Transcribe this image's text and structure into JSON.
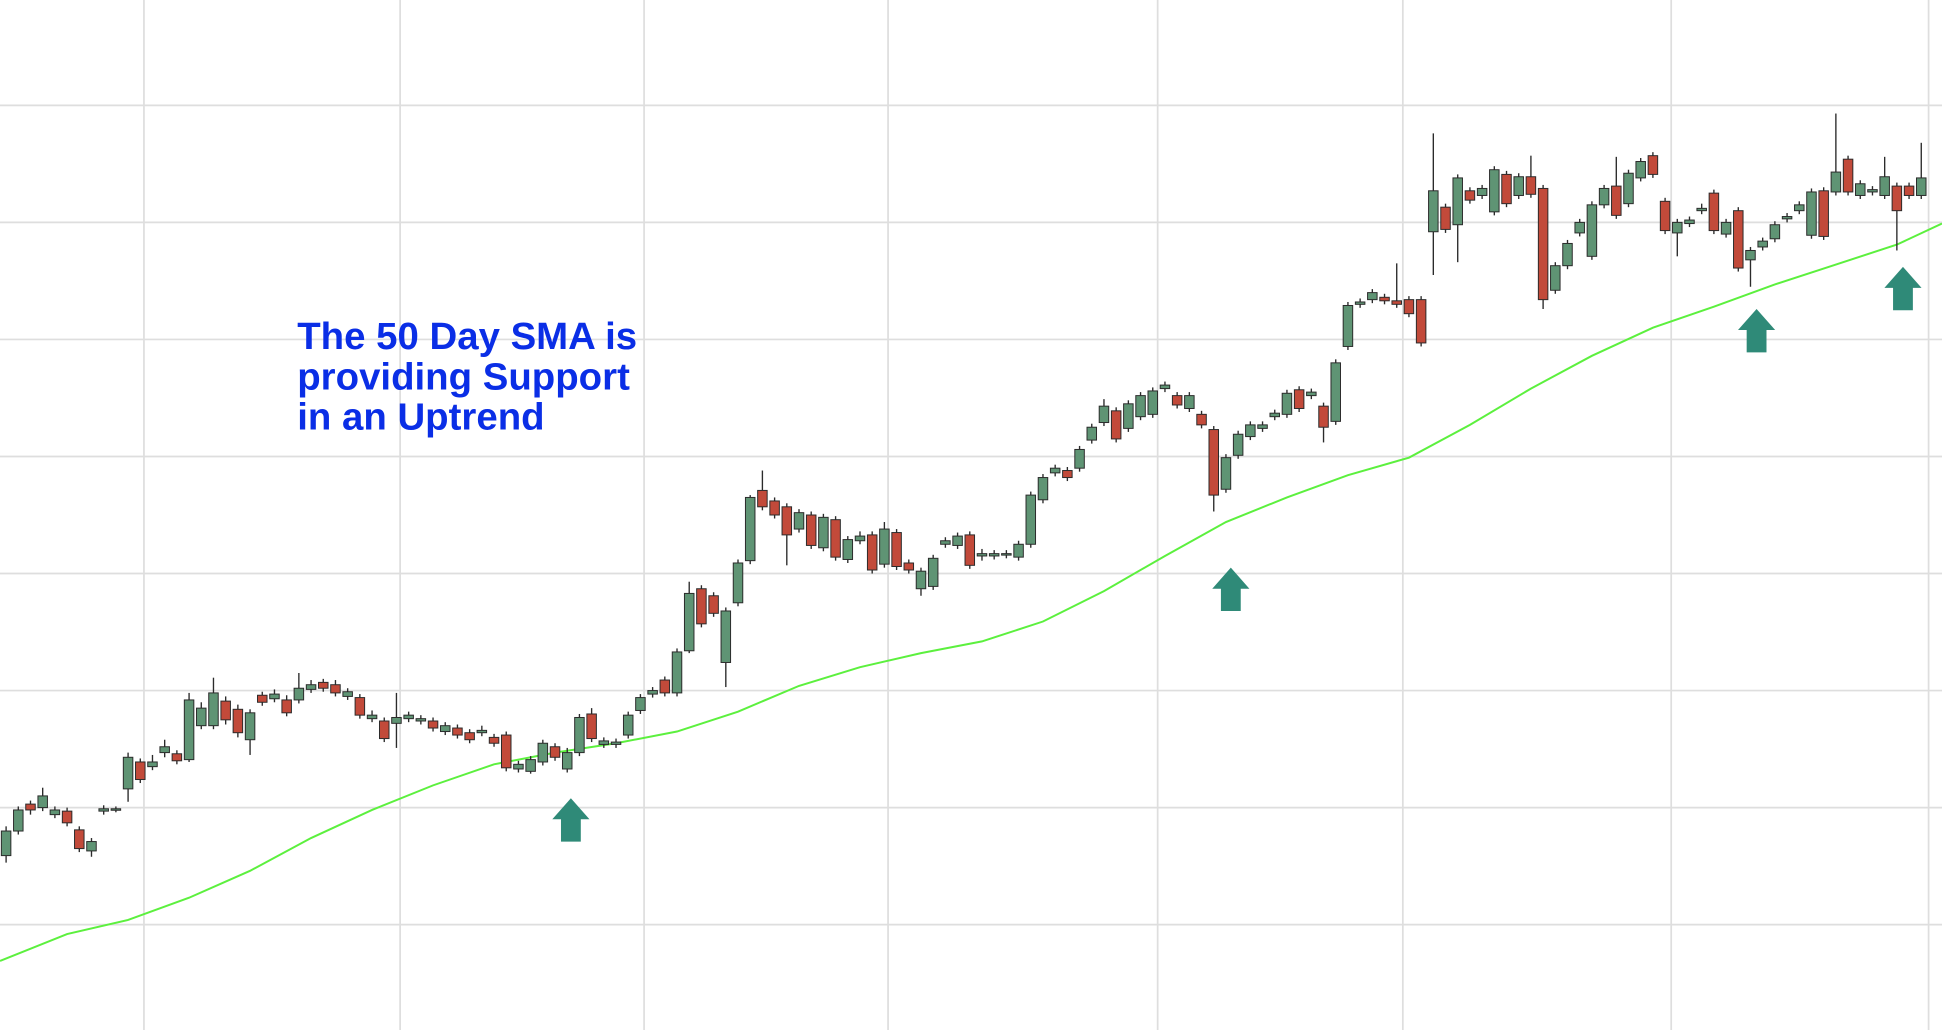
{
  "chart_data": {
    "type": "candlestick",
    "annotation": {
      "lines": [
        "The 50 Day SMA is",
        "providing Support",
        "in an Uptrend"
      ],
      "color": "#0a2ee6"
    },
    "up_color": "#5f9474",
    "down_color": "#c24a3a",
    "open": [
      15.9,
      18.0,
      20.3,
      20.0,
      19.4,
      19.7,
      18.1,
      16.3,
      19.7,
      19.8,
      21.6,
      23.9,
      23.5,
      24.7,
      24.6,
      24.1,
      27.0,
      27.0,
      29.1,
      28.4,
      25.8,
      29.6,
      29.3,
      29.2,
      29.2,
      30.1,
      30.7,
      30.5,
      29.5,
      29.4,
      27.6,
      27.4,
      27.2,
      27.6,
      27.4,
      27.4,
      26.5,
      26.8,
      26.4,
      26.4,
      26.0,
      26.2,
      23.3,
      23.1,
      23.9,
      25.2,
      23.3,
      24.7,
      28.0,
      25.4,
      25.4,
      26.2,
      28.3,
      29.7,
      30.9,
      29.8,
      33.4,
      38.7,
      38.1,
      32.4,
      37.5,
      41.1,
      47.1,
      46.2,
      45.7,
      43.8,
      45.0,
      42.2,
      44.6,
      41.2,
      42.8,
      43.3,
      40.8,
      43.5,
      40.9,
      38.7,
      38.9,
      42.5,
      42.4,
      43.3,
      41.5,
      41.5,
      41.6,
      41.4,
      42.5,
      46.3,
      48.6,
      48.8,
      49.0,
      51.4,
      52.9,
      53.9,
      52.4,
      53.4,
      53.6,
      55.8,
      55.2,
      54.1,
      53.6,
      52.3,
      47.2,
      50.1,
      51.7,
      52.4,
      53.4,
      53.6,
      55.7,
      55.2,
      54.3,
      53.0,
      59.4,
      63.0,
      63.4,
      63.6,
      63.3,
      63.4,
      63.4,
      69.2,
      71.3,
      69.8,
      72.7,
      72.3,
      70.9,
      74.1,
      72.3,
      73.9,
      72.9,
      64.2,
      66.3,
      69.1,
      67.1,
      71.5,
      73.1,
      71.6,
      73.8,
      75.7,
      71.8,
      69.1,
      69.9,
      71.0,
      72.5,
      69.0,
      71.0,
      66.8,
      67.9,
      68.6,
      70.3,
      71.0,
      68.9,
      72.7,
      72.6,
      75.4,
      72.3,
      72.6,
      72.3,
      73.1,
      73.1,
      72.3
    ],
    "high": [
      18.4,
      20.1,
      20.6,
      21.7,
      20.1,
      20.0,
      18.4,
      17.4,
      20.2,
      20.1,
      24.7,
      24.2,
      24.5,
      25.8,
      24.9,
      29.8,
      29.0,
      31.1,
      29.5,
      28.8,
      28.4,
      29.9,
      30.1,
      29.6,
      31.5,
      30.9,
      31.0,
      30.9,
      30.2,
      29.7,
      28.3,
      27.7,
      29.8,
      28.2,
      27.9,
      27.7,
      27.3,
      27.1,
      26.7,
      27.0,
      26.3,
      26.5,
      24.0,
      24.4,
      25.8,
      25.5,
      25.1,
      28.0,
      28.5,
      26.0,
      25.9,
      28.2,
      29.7,
      30.3,
      31.2,
      33.6,
      39.3,
      39.0,
      38.4,
      37.1,
      41.2,
      46.7,
      48.8,
      46.5,
      46.0,
      45.5,
      45.3,
      45.1,
      44.9,
      43.2,
      43.6,
      43.6,
      44.4,
      43.8,
      41.2,
      40.5,
      41.6,
      43.1,
      43.5,
      43.6,
      42.1,
      42.0,
      42.0,
      42.8,
      47.0,
      48.5,
      49.3,
      49.1,
      50.9,
      52.8,
      54.9,
      54.2,
      54.8,
      55.5,
      55.9,
      56.4,
      55.5,
      55.5,
      53.9,
      52.6,
      50.2,
      52.2,
      53.0,
      53.0,
      54.0,
      55.7,
      56.0,
      55.8,
      54.6,
      58.3,
      63.2,
      63.5,
      64.3,
      63.9,
      66.5,
      63.7,
      63.7,
      77.6,
      71.6,
      74.1,
      73.0,
      73.2,
      74.8,
      74.4,
      74.2,
      75.7,
      73.2,
      66.6,
      68.5,
      70.3,
      71.8,
      73.2,
      75.6,
      74.5,
      75.5,
      76.0,
      72.1,
      70.3,
      70.5,
      71.6,
      72.8,
      70.3,
      71.3,
      67.9,
      68.7,
      70.1,
      70.8,
      71.8,
      72.9,
      73.0,
      79.3,
      75.7,
      73.6,
      73.1,
      75.6,
      73.4,
      73.4,
      76.8
    ],
    "low": [
      15.3,
      17.7,
      19.4,
      19.7,
      19.1,
      18.4,
      16.2,
      15.8,
      19.4,
      19.6,
      20.5,
      22.1,
      23.2,
      24.3,
      23.7,
      23.9,
      26.7,
      26.7,
      27.1,
      26.0,
      24.5,
      28.7,
      29.0,
      27.8,
      28.9,
      29.8,
      29.9,
      29.5,
      29.2,
      27.6,
      27.3,
      25.6,
      25.1,
      27.3,
      27.1,
      26.5,
      26.2,
      25.9,
      25.5,
      26.1,
      25.2,
      23.1,
      23.0,
      22.9,
      23.6,
      24.0,
      23.0,
      24.4,
      25.6,
      25.1,
      25.1,
      25.9,
      28.0,
      29.4,
      29.5,
      29.5,
      33.2,
      35.4,
      36.3,
      30.3,
      37.2,
      40.8,
      45.4,
      44.7,
      40.7,
      43.5,
      42.1,
      41.9,
      41.1,
      40.9,
      42.5,
      40.0,
      40.5,
      40.3,
      40.0,
      38.1,
      38.6,
      42.2,
      42.1,
      40.4,
      41.1,
      41.2,
      41.3,
      41.1,
      42.2,
      46.0,
      48.3,
      47.9,
      48.7,
      51.1,
      52.6,
      51.2,
      52.1,
      53.1,
      53.3,
      55.5,
      54.1,
      53.8,
      52.4,
      45.3,
      46.9,
      49.8,
      51.4,
      52.1,
      53.1,
      53.3,
      53.8,
      54.9,
      51.2,
      52.7,
      59.1,
      62.7,
      63.1,
      63.0,
      62.7,
      61.9,
      59.4,
      65.5,
      69.1,
      66.6,
      71.6,
      72.0,
      70.6,
      71.3,
      72.0,
      72.1,
      62.6,
      63.9,
      66.0,
      68.8,
      66.8,
      71.2,
      70.3,
      71.3,
      73.5,
      73.8,
      69.0,
      67.1,
      69.6,
      70.7,
      69.0,
      68.7,
      65.8,
      64.5,
      67.6,
      68.3,
      70.0,
      70.7,
      68.6,
      68.5,
      72.3,
      72.3,
      72.0,
      72.3,
      72.0,
      67.6,
      72.0,
      72.0
    ],
    "close": [
      18.0,
      19.8,
      19.8,
      21.0,
      19.8,
      18.7,
      16.5,
      17.1,
      19.9,
      19.9,
      24.3,
      22.4,
      23.9,
      25.2,
      24.0,
      29.2,
      28.5,
      29.8,
      27.5,
      26.4,
      28.1,
      29.0,
      29.7,
      28.1,
      30.2,
      30.5,
      30.2,
      29.8,
      29.9,
      27.9,
      27.9,
      25.9,
      27.7,
      27.9,
      27.6,
      26.8,
      27.0,
      26.2,
      25.8,
      26.6,
      25.5,
      23.4,
      23.7,
      24.1,
      25.5,
      24.3,
      24.7,
      27.7,
      25.9,
      25.7,
      25.6,
      27.9,
      29.4,
      30.0,
      29.8,
      33.3,
      38.3,
      35.7,
      36.6,
      36.8,
      40.9,
      46.5,
      45.7,
      45.0,
      43.3,
      45.2,
      42.4,
      44.8,
      41.4,
      42.9,
      43.2,
      40.3,
      43.8,
      40.6,
      40.3,
      40.2,
      41.3,
      42.8,
      43.2,
      40.7,
      41.7,
      41.7,
      41.7,
      42.5,
      46.7,
      48.2,
      49.0,
      48.2,
      50.6,
      52.5,
      54.3,
      51.5,
      54.5,
      55.2,
      55.6,
      56.1,
      54.4,
      55.2,
      52.7,
      46.7,
      49.9,
      51.9,
      52.7,
      52.7,
      53.7,
      55.4,
      54.1,
      55.5,
      52.5,
      58.0,
      62.9,
      63.2,
      64.0,
      63.3,
      63.0,
      62.2,
      59.7,
      72.7,
      69.4,
      73.8,
      71.9,
      72.9,
      74.5,
      71.6,
      73.9,
      72.4,
      63.4,
      66.3,
      68.2,
      70.0,
      71.5,
      72.9,
      70.6,
      74.2,
      75.2,
      74.1,
      69.3,
      70.0,
      70.2,
      71.2,
      69.3,
      70.0,
      66.1,
      67.6,
      68.4,
      69.8,
      70.5,
      71.5,
      72.6,
      68.8,
      74.3,
      72.6,
      73.3,
      72.8,
      73.9,
      71.0,
      72.3,
      73.8
    ],
    "sma": {
      "color": "#5cf03e",
      "x": [
        -0.5,
        5,
        10,
        15,
        20,
        25,
        30,
        35,
        40,
        45,
        50,
        55,
        60,
        65,
        70,
        75,
        80,
        85,
        90,
        95,
        100,
        105,
        110,
        115,
        120,
        125,
        130,
        135,
        140,
        145,
        150,
        155,
        158.7
      ],
      "values": [
        6.9,
        9.2,
        10.4,
        12.3,
        14.6,
        17.4,
        19.8,
        21.9,
        23.7,
        24.7,
        25.5,
        26.5,
        28.2,
        30.4,
        32.0,
        33.2,
        34.2,
        35.9,
        38.5,
        41.5,
        44.4,
        46.5,
        48.4,
        49.9,
        52.7,
        55.8,
        58.6,
        61.0,
        62.8,
        64.7,
        66.4,
        68.1,
        69.9
      ]
    },
    "markers": {
      "color": "#2f8a78",
      "x": [
        46.3,
        100.4,
        143.5,
        155.5
      ],
      "y": [
        20.8,
        40.5,
        62.6,
        66.2
      ]
    },
    "xlim": [
      -0.5,
      158.7
    ],
    "ylim": [
      1,
      89
    ],
    "xticks": [
      11.3,
      32.3,
      52.3,
      72.3,
      94.4,
      114.5,
      136.5,
      157.6
    ],
    "yticks": [
      10,
      20,
      30,
      40,
      50,
      60,
      70,
      80
    ],
    "grid": true
  }
}
